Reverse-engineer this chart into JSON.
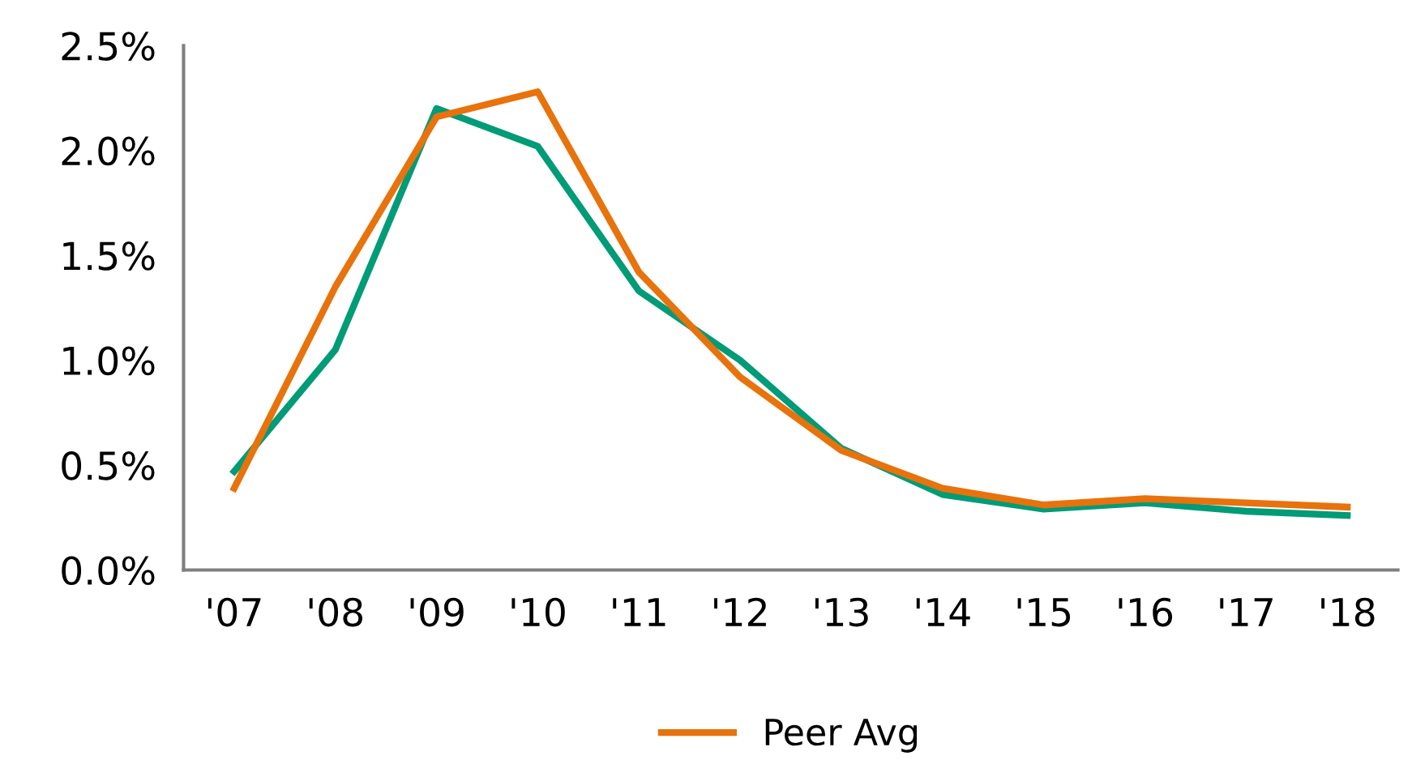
{
  "chart_data": {
    "type": "line",
    "categories": [
      "'07",
      "'08",
      "'09",
      "'10",
      "'11",
      "'12",
      "'13",
      "'14",
      "'15",
      "'16",
      "'17",
      "'18"
    ],
    "series": [
      {
        "color": "#009b77",
        "values": [
          0.47,
          1.05,
          2.2,
          2.02,
          1.33,
          1.0,
          0.58,
          0.36,
          0.29,
          0.32,
          0.28,
          0.26
        ]
      },
      {
        "name": "Peer Avg",
        "color": "#e8720c",
        "values": [
          0.39,
          1.35,
          2.16,
          2.28,
          1.42,
          0.92,
          0.57,
          0.39,
          0.31,
          0.34,
          0.32,
          0.3
        ]
      }
    ],
    "ylim": [
      0,
      2.5
    ],
    "yticks": [
      {
        "value": 0,
        "label": "0.0%"
      },
      {
        "value": 0.5,
        "label": "0.5%"
      },
      {
        "value": 1,
        "label": "1.0%"
      },
      {
        "value": 1.5,
        "label": "1.5%"
      },
      {
        "value": 2,
        "label": "2.0%"
      },
      {
        "value": 2.5,
        "label": "2.5%"
      }
    ],
    "grid": false,
    "legend": "bottom",
    "marker": "none",
    "line_style": "solid"
  }
}
